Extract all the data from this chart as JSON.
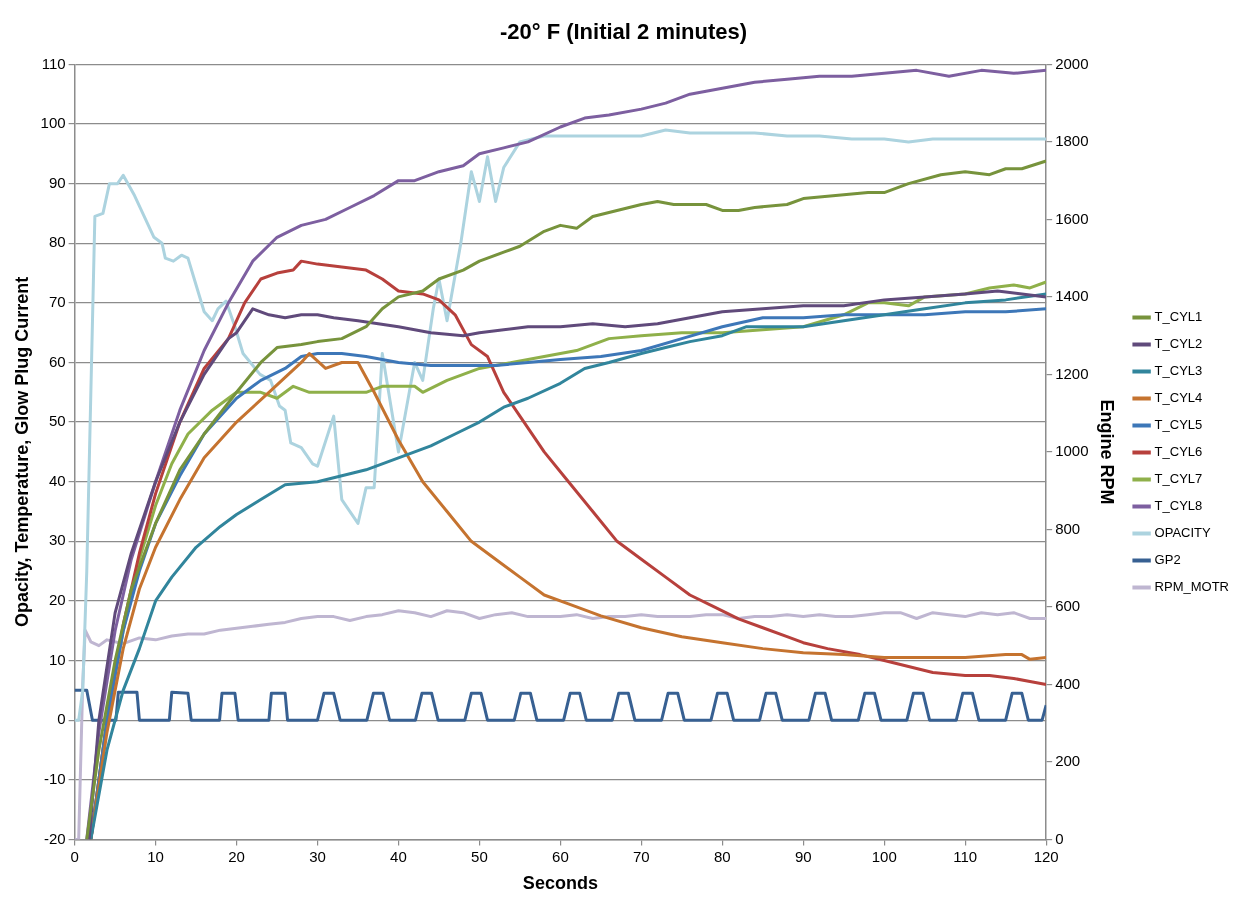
{
  "chart_data": {
    "type": "line",
    "title": "-20° F (Initial 2 minutes)",
    "xlabel": "Seconds",
    "ylabel": "Opacity, Temperature, Glow Plug Current",
    "y2label": "Engine RPM",
    "xlim": [
      0,
      120
    ],
    "xticks": [
      0,
      10,
      20,
      30,
      40,
      50,
      60,
      70,
      80,
      90,
      100,
      110,
      120
    ],
    "ylim": [
      -20,
      110
    ],
    "yticks": [
      -20,
      -10,
      0,
      10,
      20,
      30,
      40,
      50,
      60,
      70,
      80,
      90,
      100,
      110
    ],
    "y2lim": [
      0,
      2000
    ],
    "y2ticks": [
      0,
      200,
      400,
      600,
      800,
      1000,
      1200,
      1400,
      1600,
      1800,
      2000
    ],
    "grid": "y",
    "legend": "right",
    "marker": "none",
    "line_style": "solid",
    "series": [
      {
        "name": "T_CYL1",
        "color": "#77933c",
        "x": [
          1.5,
          3,
          5,
          7,
          10,
          13,
          16,
          20,
          23,
          25,
          28,
          30,
          33,
          36,
          38,
          40,
          43,
          45,
          48,
          50,
          53,
          55,
          58,
          60,
          62,
          64,
          67,
          70,
          72,
          74,
          78,
          80,
          82,
          84,
          88,
          90,
          94,
          98,
          100,
          103,
          107,
          110,
          113,
          115,
          117,
          120
        ],
        "values": [
          -20,
          -5,
          10,
          22,
          33,
          42,
          48,
          55,
          60,
          62.5,
          63,
          63.5,
          64,
          66,
          69,
          71,
          72,
          74,
          75.5,
          77,
          78.5,
          79.5,
          82,
          83,
          82.5,
          84.5,
          85.5,
          86.5,
          87,
          86.5,
          86.5,
          85.5,
          85.5,
          86,
          86.5,
          87.5,
          88,
          88.5,
          88.5,
          90,
          91.5,
          92,
          91.5,
          92.5,
          92.5,
          93.8
        ]
      },
      {
        "name": "T_CYL2",
        "color": "#604a7b",
        "x": [
          1.8,
          3,
          5,
          7,
          10,
          13,
          16,
          19,
          20,
          22,
          24,
          26,
          28,
          30,
          32,
          35,
          40,
          44,
          48,
          50,
          53,
          56,
          60,
          64,
          68,
          72,
          76,
          80,
          85,
          90,
          95,
          100,
          105,
          110,
          114,
          117,
          120
        ],
        "values": [
          -20,
          0,
          18,
          28,
          40,
          50,
          58,
          64,
          65,
          69,
          68,
          67.5,
          68,
          68,
          67.5,
          67,
          66,
          65,
          64.5,
          65,
          65.5,
          66,
          66,
          66.5,
          66,
          66.5,
          67.5,
          68.5,
          69,
          69.5,
          69.5,
          70.5,
          71,
          71.5,
          72,
          71.5,
          71
        ]
      },
      {
        "name": "T_CYL3",
        "color": "#31859c",
        "x": [
          2,
          4,
          6,
          8,
          10,
          12,
          15,
          18,
          20,
          23,
          26,
          30,
          33,
          36,
          40,
          44,
          47,
          50,
          53,
          56,
          60,
          63,
          66,
          70,
          73,
          76,
          80,
          83,
          86,
          90,
          95,
          100,
          105,
          110,
          115,
          120
        ],
        "values": [
          -20,
          -5,
          5,
          12,
          20,
          24,
          29,
          32.5,
          34.5,
          37,
          39.5,
          40,
          41,
          42,
          44,
          46,
          48,
          50,
          52.5,
          54,
          56.5,
          59,
          60,
          61.5,
          62.5,
          63.5,
          64.5,
          66,
          66,
          66,
          67,
          68,
          69,
          70,
          70.5,
          71.5
        ]
      },
      {
        "name": "T_CYL4",
        "color": "#c5732f",
        "x": [
          2,
          4,
          6,
          8,
          10,
          13,
          16,
          20,
          24,
          28,
          29,
          31,
          33,
          35,
          37,
          40,
          43,
          46,
          49,
          52,
          55,
          58,
          61,
          65,
          70,
          75,
          80,
          85,
          90,
          95,
          100,
          105,
          110,
          115,
          117,
          118,
          120
        ],
        "values": [
          -20,
          -2,
          12,
          22,
          29,
          37,
          44,
          50,
          55,
          60,
          61.5,
          59,
          60,
          60,
          55,
          47,
          40,
          35,
          30,
          27,
          24,
          21,
          19.5,
          17.5,
          15.5,
          14,
          13,
          12,
          11.3,
          11,
          10.5,
          10.5,
          10.5,
          11,
          11,
          10.2,
          10.5
        ]
      },
      {
        "name": "T_CYL5",
        "color": "#3d77b8",
        "x": [
          2,
          4,
          6,
          8,
          10,
          13,
          16,
          20,
          23,
          26,
          28,
          30,
          33,
          36,
          40,
          44,
          48,
          52,
          56,
          60,
          65,
          70,
          75,
          80,
          85,
          90,
          95,
          100,
          105,
          110,
          115,
          120
        ],
        "values": [
          -20,
          0,
          15,
          25,
          33,
          41,
          48,
          54,
          57,
          59,
          61,
          61.5,
          61.5,
          61,
          60,
          59.5,
          59.5,
          59.5,
          60,
          60.5,
          61,
          62,
          64,
          66,
          67.5,
          67.5,
          68,
          68,
          68,
          68.5,
          68.5,
          69
        ]
      },
      {
        "name": "T_CYL6",
        "color": "#b7403c",
        "x": [
          2,
          4,
          6,
          8,
          10,
          13,
          16,
          19,
          21,
          23,
          25,
          27,
          28,
          30,
          33,
          36,
          38,
          40,
          43,
          45,
          47,
          49,
          51,
          53,
          55,
          58,
          61,
          64,
          67,
          70,
          73,
          76,
          79,
          82,
          85,
          88,
          90,
          93,
          97,
          100,
          103,
          106,
          110,
          113,
          116,
          118,
          120
        ],
        "values": [
          -20,
          0,
          16,
          28,
          38,
          50,
          59,
          64,
          70,
          74,
          75,
          75.5,
          77,
          76.5,
          76,
          75.5,
          74,
          72,
          71.5,
          70.5,
          68,
          63,
          61,
          55,
          51,
          45,
          40,
          35,
          30,
          27,
          24,
          21,
          19,
          17,
          15.5,
          14,
          13,
          12,
          11,
          10,
          9,
          8,
          7.5,
          7.5,
          7,
          6.5,
          6
        ]
      },
      {
        "name": "T_CYL7",
        "color": "#8fb04a",
        "x": [
          2,
          4,
          6,
          8,
          10,
          12,
          14,
          17,
          20,
          23,
          25,
          27,
          29,
          31,
          33,
          36,
          38,
          42,
          43,
          46,
          50,
          54,
          58,
          62,
          66,
          70,
          75,
          80,
          85,
          90,
          95,
          98,
          100,
          103,
          105,
          110,
          113,
          116,
          118,
          120
        ],
        "values": [
          -20,
          0,
          15,
          27,
          36,
          43,
          48,
          52,
          55,
          55,
          54,
          56,
          55,
          55,
          55,
          55,
          56,
          56,
          55,
          57,
          59,
          60,
          61,
          62,
          64,
          64.5,
          65,
          65,
          65.5,
          66,
          68,
          70,
          70,
          69.5,
          71,
          71.5,
          72.5,
          73,
          72.5,
          73.5
        ]
      },
      {
        "name": "T_CYL8",
        "color": "#7d5fa0",
        "x": [
          1.5,
          3,
          5,
          7,
          10,
          13,
          16,
          19,
          22,
          25,
          28,
          31,
          34,
          37,
          40,
          42,
          45,
          48,
          50,
          53,
          56,
          60,
          63,
          66,
          70,
          73,
          76,
          80,
          84,
          88,
          92,
          96,
          100,
          104,
          108,
          112,
          116,
          120
        ],
        "values": [
          -20,
          -2,
          15,
          27,
          40,
          52,
          62,
          70,
          77,
          81,
          83,
          84,
          86,
          88,
          90.5,
          90.5,
          92,
          93,
          95,
          96,
          97,
          99.5,
          101,
          101.5,
          102.5,
          103.5,
          105,
          106,
          107,
          107.5,
          108,
          108,
          108.5,
          109,
          108,
          109,
          108.5,
          109
        ]
      },
      {
        "name": "OPACITY",
        "color": "#acd3df",
        "x": [
          0,
          0.5,
          1,
          1.5,
          2.5,
          3.5,
          4.3,
          5.3,
          6,
          7.4,
          9.8,
          10.8,
          11.2,
          12.2,
          13.2,
          14,
          15,
          16,
          17,
          17.7,
          18.7,
          19.8,
          20.8,
          22.9,
          24.2,
          25.3,
          26,
          26.7,
          28,
          29.4,
          30,
          32,
          33,
          35,
          36,
          37,
          38,
          40,
          42,
          43,
          44.3,
          45,
          46,
          47.7,
          49,
          50,
          51,
          52,
          53,
          55,
          58,
          62,
          66,
          70,
          73,
          76,
          80,
          84,
          88,
          92,
          96,
          100,
          103,
          106,
          110,
          114,
          118,
          120
        ],
        "values": [
          0,
          0,
          5,
          25,
          84.5,
          85,
          90,
          90,
          91.4,
          88,
          81,
          80,
          77.5,
          77,
          78,
          77.5,
          73,
          68.5,
          67,
          69,
          70.3,
          66,
          61.5,
          58,
          57,
          52.7,
          52,
          46.5,
          45.7,
          43,
          42.6,
          51,
          37,
          33,
          39,
          39,
          61.5,
          45,
          60,
          57,
          69,
          74,
          67,
          80,
          92,
          87,
          94.5,
          87,
          92.7,
          97,
          98,
          98,
          98,
          98,
          99,
          98.5,
          98.5,
          98.5,
          98,
          98,
          97.5,
          97.5,
          97,
          97.5,
          97.5,
          97.5,
          97.5,
          97.5
        ]
      },
      {
        "name": "GP2",
        "color": "#376092",
        "x": [
          0,
          1.5,
          2.2,
          5.1,
          5.4,
          7.7,
          8,
          11.7,
          12,
          14,
          14.4,
          17.9,
          18.2,
          19.8,
          20.2,
          24,
          24.3,
          26,
          26.3,
          30,
          30.8,
          32,
          32.8,
          36.1,
          36.9,
          38.1,
          38.9,
          42.1,
          42.9,
          44.1,
          44.9,
          48.2,
          49,
          50.2,
          51,
          54.3,
          55.1,
          56.3,
          57.1,
          60.4,
          61.2,
          62.4,
          63.2,
          66.4,
          67.2,
          68.4,
          69.2,
          72.5,
          73.3,
          74.5,
          75.3,
          78.6,
          79.4,
          80.6,
          81.4,
          84.6,
          85.4,
          86.6,
          87.4,
          90.7,
          91.5,
          92.7,
          93.5,
          96.8,
          97.6,
          98.8,
          99.6,
          102.8,
          103.6,
          104.8,
          105.6,
          108.9,
          109.7,
          110.9,
          111.7,
          115,
          115.8,
          117,
          117.8,
          119.5,
          120
        ],
        "values": [
          5,
          5,
          0,
          0,
          4.7,
          4.7,
          0,
          0,
          4.7,
          4.5,
          0,
          0,
          4.5,
          4.5,
          0,
          0,
          4.5,
          4.5,
          0,
          0,
          4.5,
          4.5,
          0,
          0,
          4.5,
          4.5,
          0,
          0,
          4.5,
          4.5,
          0,
          0,
          4.5,
          4.5,
          0,
          0,
          4.5,
          4.5,
          0,
          0,
          4.5,
          4.5,
          0,
          0,
          4.5,
          4.5,
          0,
          0,
          4.5,
          4.5,
          0,
          0,
          4.5,
          4.5,
          0,
          0,
          4.5,
          4.5,
          0,
          0,
          4.5,
          4.5,
          0,
          0,
          4.5,
          4.5,
          0,
          0,
          4.5,
          4.5,
          0,
          0,
          4.5,
          4.5,
          0,
          0,
          4.5,
          4.5,
          0,
          0,
          2.5
        ]
      },
      {
        "name": "RPM_MOTR",
        "color": "#bfb6d1",
        "axis": "y2",
        "x": [
          0,
          0.5,
          1,
          1.3,
          2,
          3,
          4,
          6,
          8,
          10,
          12,
          14,
          16,
          18,
          20,
          22,
          24,
          26,
          28,
          30,
          32,
          34,
          36,
          38,
          40,
          42,
          44,
          46,
          48,
          50,
          52,
          54,
          56,
          58,
          60,
          62,
          64,
          66,
          68,
          70,
          72,
          74,
          76,
          78,
          80,
          82,
          84,
          86,
          88,
          90,
          92,
          94,
          96,
          98,
          100,
          102,
          104,
          106,
          108,
          110,
          112,
          114,
          116,
          118,
          120
        ],
        "values": [
          0,
          0,
          400,
          540,
          510,
          500,
          515,
          505,
          520,
          515,
          525,
          530,
          530,
          540,
          545,
          550,
          555,
          560,
          570,
          575,
          575,
          565,
          575,
          580,
          590,
          585,
          575,
          590,
          585,
          570,
          580,
          585,
          575,
          575,
          575,
          580,
          570,
          575,
          575,
          580,
          575,
          575,
          575,
          580,
          580,
          570,
          575,
          575,
          580,
          575,
          580,
          575,
          575,
          580,
          585,
          585,
          570,
          585,
          580,
          575,
          585,
          580,
          585,
          570,
          570
        ]
      }
    ]
  }
}
